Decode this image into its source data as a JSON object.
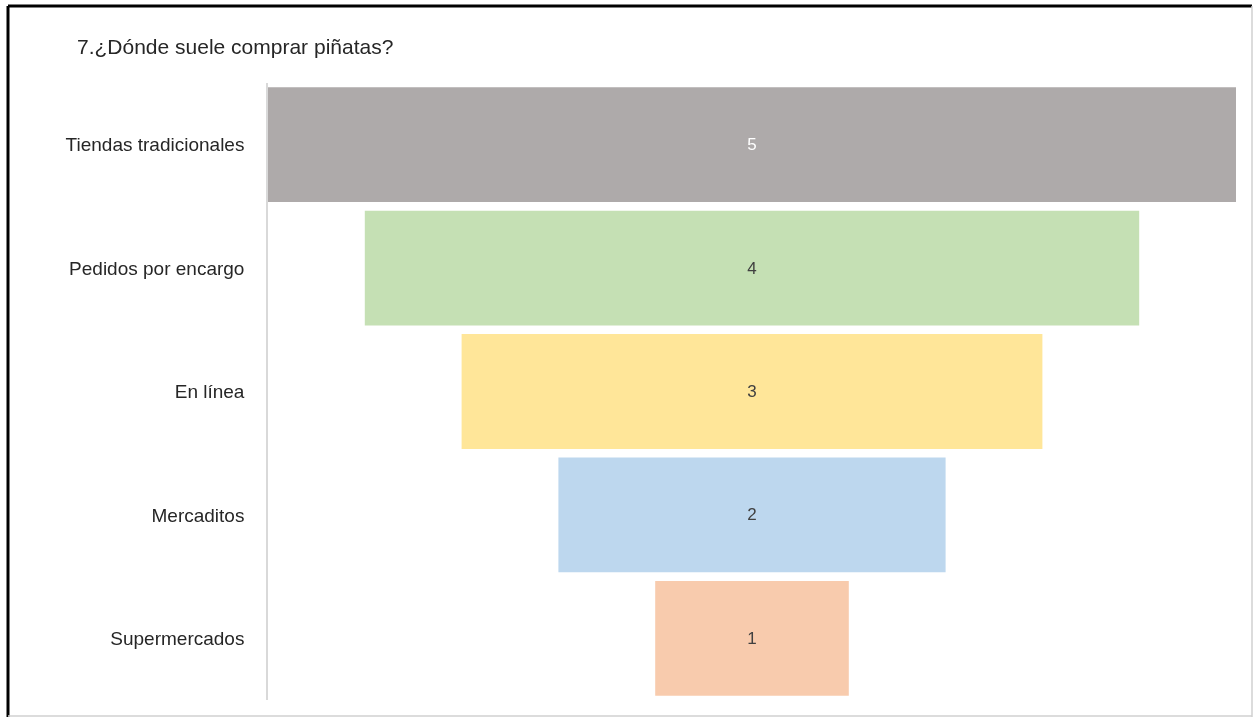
{
  "chart_data": {
    "type": "other",
    "title": "7.¿Dónde suele comprar piñatas?",
    "categories": [
      "Tiendas tradicionales",
      "Pedidos por encargo",
      "En línea",
      "Mercaditos",
      "Supermercados"
    ],
    "values": [
      5,
      4,
      3,
      2,
      1
    ],
    "colors": [
      "#aeaaaa",
      "#c5e0b4",
      "#ffe699",
      "#bdd7ee",
      "#f8cbad"
    ],
    "data_labels": true
  }
}
